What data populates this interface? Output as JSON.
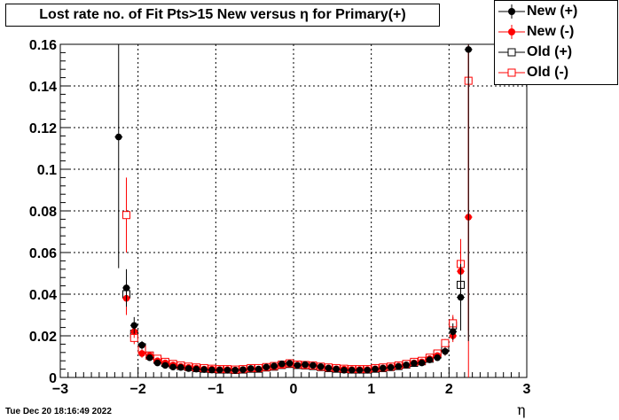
{
  "title": "Lost rate no. of Fit Pts>15 New versus  η for Primary(+)",
  "footer": "Tue Dec 20 18:16:49 2022",
  "chart_data": {
    "type": "scatter",
    "title": "Lost rate no. of Fit Pts>15 New versus  η for Primary(+)",
    "xlabel": "η",
    "ylabel": "",
    "xlim": [
      -3,
      3
    ],
    "ylim": [
      0,
      0.16
    ],
    "xticks": [
      "−3",
      "−2",
      "−1",
      "0",
      "1",
      "2",
      "3"
    ],
    "yticks": [
      "0",
      "0.02",
      "0.04",
      "0.06",
      "0.08",
      "0.1",
      "0.12",
      "0.14",
      "0.16"
    ],
    "grid": true,
    "legend_position": "top-right",
    "series": [
      {
        "name": "New (+)",
        "color": "#000000",
        "marker": "filled-circle",
        "x": [
          -2.25,
          -2.15,
          -2.05,
          -1.95,
          -1.85,
          -1.75,
          -1.65,
          -1.55,
          -1.45,
          -1.35,
          -1.25,
          -1.15,
          -1.05,
          -0.95,
          -0.85,
          -0.75,
          -0.65,
          -0.55,
          -0.45,
          -0.35,
          -0.25,
          -0.15,
          -0.05,
          0.05,
          0.15,
          0.25,
          0.35,
          0.45,
          0.55,
          0.65,
          0.75,
          0.85,
          0.95,
          1.05,
          1.15,
          1.25,
          1.35,
          1.45,
          1.55,
          1.65,
          1.75,
          1.85,
          1.95,
          2.05,
          2.15,
          2.25
        ],
        "y": [
          0.1155,
          0.043,
          0.025,
          0.0155,
          0.0095,
          0.007,
          0.0058,
          0.005,
          0.0048,
          0.0043,
          0.004,
          0.0038,
          0.0036,
          0.0036,
          0.0035,
          0.0035,
          0.0037,
          0.0043,
          0.004,
          0.005,
          0.0055,
          0.0065,
          0.0068,
          0.0058,
          0.0062,
          0.0058,
          0.0052,
          0.0045,
          0.004,
          0.0035,
          0.0035,
          0.0035,
          0.0035,
          0.004,
          0.0045,
          0.0048,
          0.0053,
          0.006,
          0.0068,
          0.007,
          0.0085,
          0.0095,
          0.0125,
          0.022,
          0.0385,
          0.1575
        ],
        "err": [
          0.063,
          0.009,
          0.004,
          0.002,
          0.001,
          0.001,
          0.001,
          0.001,
          0.001,
          0.001,
          0.001,
          0.001,
          0.001,
          0.001,
          0.001,
          0.001,
          0.001,
          0.001,
          0.001,
          0.001,
          0.001,
          0.001,
          0.001,
          0.001,
          0.001,
          0.001,
          0.001,
          0.001,
          0.001,
          0.001,
          0.001,
          0.001,
          0.001,
          0.001,
          0.001,
          0.001,
          0.001,
          0.001,
          0.001,
          0.001,
          0.001,
          0.001,
          0.002,
          0.004,
          0.016,
          0.14
        ]
      },
      {
        "name": "New (-)",
        "color": "#ff0000",
        "marker": "filled-circle",
        "x": [
          -2.15,
          -2.05,
          -1.95,
          -1.85,
          -1.75,
          -1.65,
          -1.55,
          -1.45,
          -1.35,
          -1.25,
          -1.15,
          -1.05,
          -0.95,
          -0.85,
          -0.75,
          -0.65,
          -0.55,
          -0.45,
          -0.35,
          -0.25,
          -0.15,
          -0.05,
          0.05,
          0.15,
          0.25,
          0.35,
          0.45,
          0.55,
          0.65,
          0.75,
          0.85,
          0.95,
          1.05,
          1.15,
          1.25,
          1.35,
          1.45,
          1.55,
          1.65,
          1.75,
          1.85,
          1.95,
          2.05,
          2.15,
          2.25
        ],
        "y": [
          0.038,
          0.022,
          0.0115,
          0.0105,
          0.008,
          0.007,
          0.006,
          0.0053,
          0.0048,
          0.0045,
          0.004,
          0.004,
          0.0038,
          0.0038,
          0.0036,
          0.0038,
          0.0042,
          0.004,
          0.0048,
          0.0052,
          0.006,
          0.0065,
          0.006,
          0.006,
          0.0058,
          0.005,
          0.0045,
          0.0042,
          0.004,
          0.0038,
          0.0038,
          0.0038,
          0.0042,
          0.0045,
          0.005,
          0.0055,
          0.006,
          0.007,
          0.0075,
          0.009,
          0.0105,
          0.0125,
          0.02,
          0.051,
          0.077
        ],
        "err": [
          0.008,
          0.003,
          0.002,
          0.001,
          0.001,
          0.001,
          0.001,
          0.001,
          0.001,
          0.001,
          0.001,
          0.001,
          0.001,
          0.001,
          0.001,
          0.001,
          0.001,
          0.001,
          0.001,
          0.001,
          0.001,
          0.001,
          0.001,
          0.001,
          0.001,
          0.001,
          0.001,
          0.001,
          0.001,
          0.001,
          0.001,
          0.001,
          0.001,
          0.001,
          0.001,
          0.001,
          0.001,
          0.001,
          0.001,
          0.001,
          0.001,
          0.002,
          0.003,
          0.012,
          0.08
        ]
      },
      {
        "name": "Old (+)",
        "color": "#000000",
        "marker": "open-square",
        "x": [
          -2.15,
          -2.05,
          -1.95,
          -1.85,
          -1.75,
          -1.65,
          -1.55,
          -1.45,
          -1.35,
          -1.25,
          -1.15,
          -1.05,
          -0.95,
          -0.85,
          -0.75,
          -0.65,
          -0.55,
          -0.45,
          -0.35,
          -0.25,
          -0.15,
          -0.05,
          0.05,
          0.15,
          0.25,
          0.35,
          0.45,
          0.55,
          0.65,
          0.75,
          0.85,
          0.95,
          1.05,
          1.15,
          1.25,
          1.35,
          1.45,
          1.55,
          1.65,
          1.75,
          1.85,
          1.95,
          2.05,
          2.15
        ],
        "y": [
          0.04,
          0.021,
          0.0145,
          0.0105,
          0.0085,
          0.007,
          0.0062,
          0.0055,
          0.005,
          0.0045,
          0.0042,
          0.004,
          0.0038,
          0.0038,
          0.0036,
          0.0038,
          0.0042,
          0.0042,
          0.0048,
          0.0052,
          0.006,
          0.0065,
          0.006,
          0.0058,
          0.0055,
          0.005,
          0.0045,
          0.0042,
          0.004,
          0.0038,
          0.0038,
          0.0038,
          0.0042,
          0.0045,
          0.005,
          0.0055,
          0.0062,
          0.007,
          0.0078,
          0.009,
          0.011,
          0.0145,
          0.025,
          0.0445
        ],
        "err": [
          0.008,
          0.003,
          0.002,
          0.001,
          0.001,
          0.001,
          0.001,
          0.001,
          0.001,
          0.001,
          0.001,
          0.001,
          0.001,
          0.001,
          0.001,
          0.001,
          0.001,
          0.001,
          0.001,
          0.001,
          0.001,
          0.001,
          0.001,
          0.001,
          0.001,
          0.001,
          0.001,
          0.001,
          0.001,
          0.001,
          0.001,
          0.001,
          0.001,
          0.001,
          0.001,
          0.001,
          0.001,
          0.001,
          0.001,
          0.001,
          0.001,
          0.002,
          0.004,
          0.01
        ]
      },
      {
        "name": "Old (-)",
        "color": "#ff0000",
        "marker": "open-square",
        "x": [
          -2.15,
          -2.05,
          -1.95,
          -1.85,
          -1.75,
          -1.65,
          -1.55,
          -1.45,
          -1.35,
          -1.25,
          -1.15,
          -1.05,
          -0.95,
          -0.85,
          -0.75,
          -0.65,
          -0.55,
          -0.45,
          -0.35,
          -0.25,
          -0.15,
          -0.05,
          0.05,
          0.15,
          0.25,
          0.35,
          0.45,
          0.55,
          0.65,
          0.75,
          0.85,
          0.95,
          1.05,
          1.15,
          1.25,
          1.35,
          1.45,
          1.55,
          1.65,
          1.75,
          1.85,
          1.95,
          2.05,
          2.15,
          2.25
        ],
        "y": [
          0.078,
          0.019,
          0.0135,
          0.0105,
          0.009,
          0.0075,
          0.0065,
          0.0058,
          0.0052,
          0.0048,
          0.0045,
          0.0042,
          0.004,
          0.004,
          0.0038,
          0.004,
          0.0045,
          0.0045,
          0.005,
          0.0055,
          0.0062,
          0.0068,
          0.0062,
          0.006,
          0.0058,
          0.0052,
          0.0048,
          0.0045,
          0.0042,
          0.004,
          0.004,
          0.004,
          0.0045,
          0.0048,
          0.0052,
          0.0058,
          0.0065,
          0.0075,
          0.008,
          0.0095,
          0.0115,
          0.0165,
          0.026,
          0.0545,
          0.1425
        ],
        "err": [
          0.018,
          0.003,
          0.002,
          0.001,
          0.001,
          0.001,
          0.001,
          0.001,
          0.001,
          0.001,
          0.001,
          0.001,
          0.001,
          0.001,
          0.001,
          0.001,
          0.001,
          0.001,
          0.001,
          0.001,
          0.001,
          0.001,
          0.001,
          0.001,
          0.001,
          0.001,
          0.001,
          0.001,
          0.001,
          0.001,
          0.001,
          0.001,
          0.001,
          0.001,
          0.001,
          0.001,
          0.001,
          0.001,
          0.001,
          0.001,
          0.001,
          0.002,
          0.004,
          0.012,
          0.12
        ]
      }
    ]
  }
}
